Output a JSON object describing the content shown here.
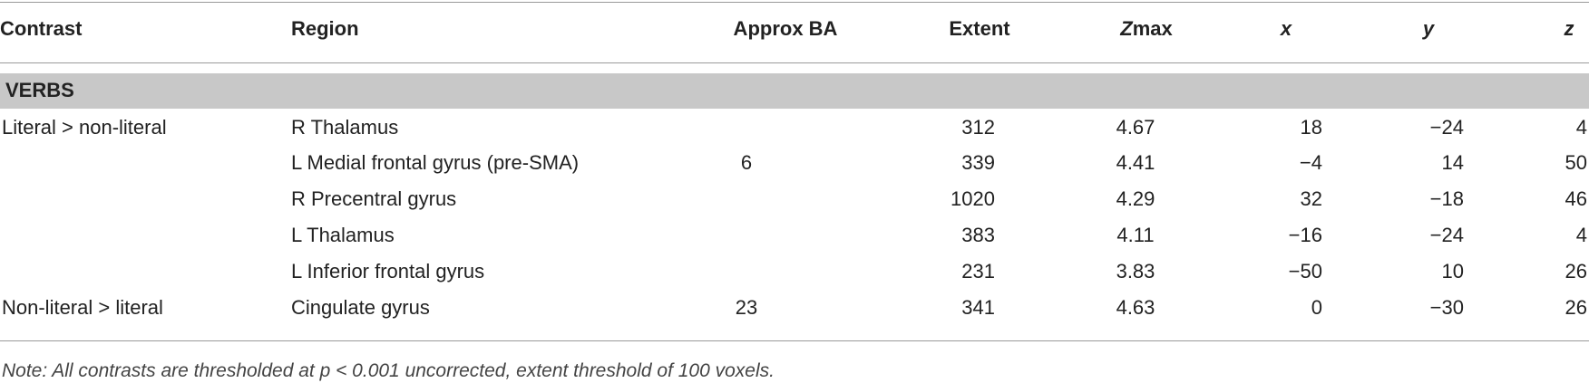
{
  "table": {
    "header": [
      "Contrast",
      "Region",
      "Approx BA",
      "Extent",
      "Zmax",
      "x",
      "y",
      "z"
    ],
    "section": "VERBS",
    "rows": [
      [
        "Literal > non-literal",
        "R Thalamus",
        null,
        "312",
        "4.67",
        "18",
        "−24",
        "4"
      ],
      [
        null,
        "L Medial frontal gyrus (pre-SMA)",
        "6",
        "339",
        "4.41",
        "−4",
        "14",
        "50"
      ],
      [
        null,
        "R Precentral gyrus",
        null,
        "1020",
        "4.29",
        "32",
        "−18",
        "46"
      ],
      [
        null,
        "L Thalamus",
        null,
        "383",
        "4.11",
        "−16",
        "−24",
        "4"
      ],
      [
        null,
        "L Inferior frontal gyrus",
        null,
        "231",
        "3.83",
        "−50",
        "10",
        "26"
      ],
      [
        "Non-literal > literal",
        "Cingulate gyrus",
        "23",
        "341",
        "4.63",
        "0",
        "−30",
        "26"
      ]
    ],
    "note": "Note: All contrasts are thresholded at p < 0.001 uncorrected, extent threshold of 100 voxels."
  }
}
